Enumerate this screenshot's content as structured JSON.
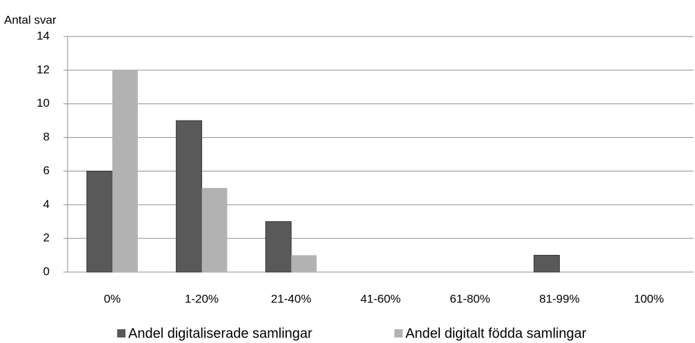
{
  "chart_data": {
    "type": "bar",
    "y_label": "Antal svar",
    "categories": [
      "0%",
      "1-20%",
      "21-40%",
      "41-60%",
      "61-80%",
      "81-99%",
      "100%"
    ],
    "series": [
      {
        "name": "Andel digitaliserade samlingar",
        "color": "#595959",
        "values": [
          6,
          9,
          3,
          0,
          0,
          1,
          0
        ]
      },
      {
        "name": "Andel digitalt födda samlingar",
        "color": "#b2b2b2",
        "values": [
          12,
          5,
          1,
          0,
          0,
          0,
          0
        ]
      }
    ],
    "ylim": [
      0,
      14
    ],
    "yticks": [
      0,
      2,
      4,
      6,
      8,
      10,
      12,
      14
    ],
    "grid": true,
    "legend": "bottom"
  }
}
